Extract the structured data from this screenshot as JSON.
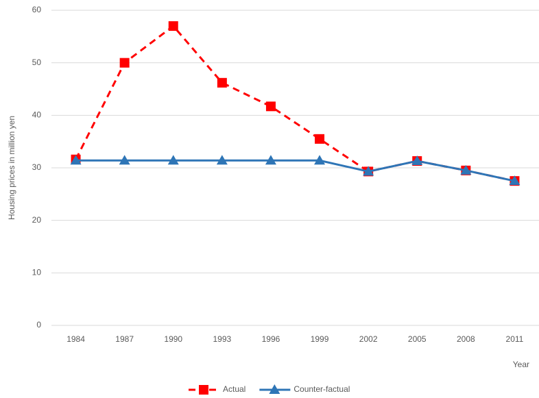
{
  "chart_data": {
    "type": "line",
    "y_label": "Housing prices in million yen",
    "x_label": "Year",
    "categories": [
      "1984",
      "1987",
      "1990",
      "1993",
      "1996",
      "1999",
      "2002",
      "2005",
      "2008",
      "2011"
    ],
    "series": [
      {
        "name": "Actual",
        "color": "#ff0000",
        "line_style": "dashed",
        "marker": "square",
        "values": [
          31.6,
          50,
          57,
          46.2,
          41.7,
          35.5,
          29.3,
          31.3,
          29.5,
          27.5
        ]
      },
      {
        "name": "Counter-factual",
        "color": "#2e75b6",
        "line_style": "solid",
        "marker": "triangle",
        "values": [
          31.4,
          31.4,
          31.4,
          31.4,
          31.4,
          31.4,
          29.3,
          31.3,
          29.5,
          27.5
        ]
      }
    ],
    "ylim": [
      0,
      60
    ],
    "yticks": [
      0,
      10,
      20,
      30,
      40,
      50,
      60
    ],
    "grid": true,
    "legend": "bottom"
  }
}
